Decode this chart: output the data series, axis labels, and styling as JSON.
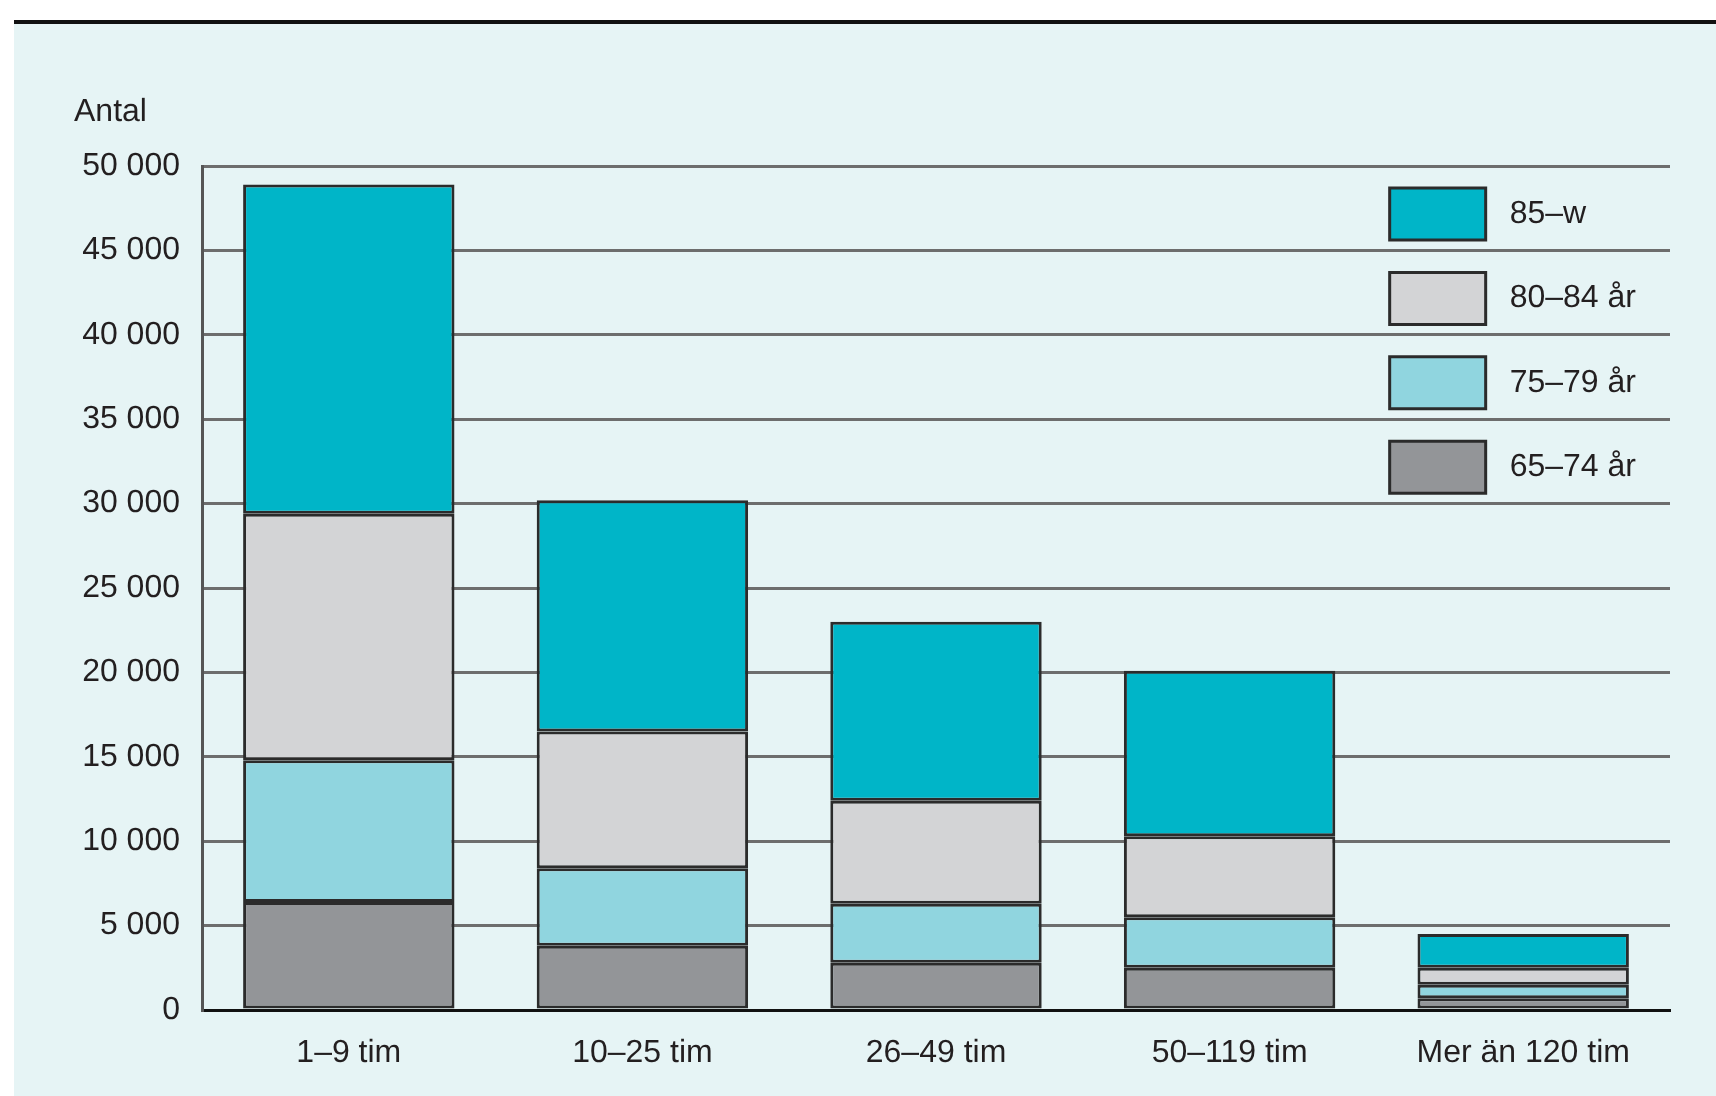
{
  "chart_data": {
    "type": "bar",
    "stacked": true,
    "ylabel": "Antal",
    "categories": [
      "1–9 tim",
      "10–25 tim",
      "26–49 tim",
      "50–119 tim",
      "Mer än 120 tim"
    ],
    "series": [
      {
        "name": "65–74 år",
        "color": "#939598",
        "values": [
          6400,
          3800,
          2800,
          2500,
          700
        ]
      },
      {
        "name": "75–79 år",
        "color": "#90d5df",
        "values": [
          8400,
          4600,
          3500,
          3000,
          800
        ]
      },
      {
        "name": "80–84 år",
        "color": "#d3d4d6",
        "values": [
          14600,
          8100,
          6100,
          4800,
          1000
        ]
      },
      {
        "name": "85–w",
        "color": "#00b5c8",
        "values": [
          19500,
          13700,
          10600,
          9800,
          2000
        ]
      }
    ],
    "ylim": [
      0,
      50000
    ],
    "yticks": [
      0,
      {
        "value": 5000,
        "label": "5 000"
      },
      {
        "value": 10000,
        "label": "10 000"
      },
      {
        "value": 15000,
        "label": "15 000"
      },
      {
        "value": 20000,
        "label": "20 000"
      },
      {
        "value": 25000,
        "label": "25 000"
      },
      {
        "value": 30000,
        "label": "30 000"
      },
      {
        "value": 35000,
        "label": "35 000"
      },
      {
        "value": 40000,
        "label": "40 000"
      },
      {
        "value": 45000,
        "label": "45 000"
      },
      {
        "value": 50000,
        "label": "50 000"
      }
    ],
    "grid": "y",
    "legend": "top right"
  }
}
